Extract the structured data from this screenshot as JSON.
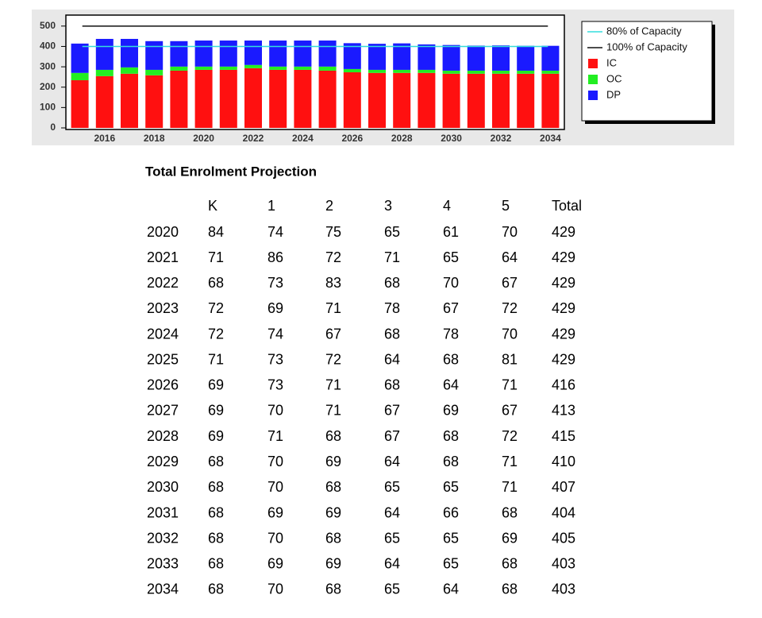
{
  "chart_data": {
    "type": "stacked-bar",
    "categories": [
      null,
      "2016",
      null,
      "2018",
      null,
      "2020",
      null,
      "2022",
      null,
      "2024",
      null,
      "2026",
      null,
      "2028",
      null,
      "2030",
      null,
      "2032",
      null,
      "2034"
    ],
    "series": [
      {
        "name": "IC",
        "color": "#ff1010",
        "values": [
          234,
          254,
          266,
          258,
          281,
          285,
          285,
          293,
          285,
          285,
          281,
          273,
          270,
          270,
          270,
          266,
          266,
          266,
          266,
          266
        ]
      },
      {
        "name": "OC",
        "color": "#22ee22",
        "values": [
          36,
          31,
          31,
          27,
          20,
          16,
          16,
          16,
          16,
          16,
          20,
          16,
          15,
          15,
          15,
          15,
          15,
          15,
          15,
          15
        ]
      },
      {
        "name": "DP",
        "color": "#1a1aff",
        "values": [
          144,
          152,
          140,
          141,
          125,
          128,
          128,
          120,
          128,
          128,
          128,
          127,
          128,
          130,
          125,
          126,
          123,
          124,
          122,
          122
        ]
      }
    ],
    "reference_lines": [
      {
        "name": "80% of Capacity",
        "color": "#33dddd",
        "value": 400
      },
      {
        "name": "100% of Capacity",
        "color": "#111111",
        "value": 500
      }
    ],
    "ylim": [
      0,
      550
    ],
    "yticks": [
      0,
      100,
      200,
      300,
      400,
      500
    ],
    "legend": "right"
  },
  "table": {
    "title": "Total Enrolment Projection",
    "columns": [
      "K",
      "1",
      "2",
      "3",
      "4",
      "5",
      "Total"
    ],
    "rows": [
      {
        "label": "2020",
        "cells": [
          84,
          74,
          75,
          65,
          61,
          70,
          429
        ]
      },
      {
        "label": "2021",
        "cells": [
          71,
          86,
          72,
          71,
          65,
          64,
          429
        ]
      },
      {
        "label": "2022",
        "cells": [
          68,
          73,
          83,
          68,
          70,
          67,
          429
        ]
      },
      {
        "label": "2023",
        "cells": [
          72,
          69,
          71,
          78,
          67,
          72,
          429
        ]
      },
      {
        "label": "2024",
        "cells": [
          72,
          74,
          67,
          68,
          78,
          70,
          429
        ]
      },
      {
        "label": "2025",
        "cells": [
          71,
          73,
          72,
          64,
          68,
          81,
          429
        ]
      },
      {
        "label": "2026",
        "cells": [
          69,
          73,
          71,
          68,
          64,
          71,
          416
        ]
      },
      {
        "label": "2027",
        "cells": [
          69,
          70,
          71,
          67,
          69,
          67,
          413
        ]
      },
      {
        "label": "2028",
        "cells": [
          69,
          71,
          68,
          67,
          68,
          72,
          415
        ]
      },
      {
        "label": "2029",
        "cells": [
          68,
          70,
          69,
          64,
          68,
          71,
          410
        ]
      },
      {
        "label": "2030",
        "cells": [
          68,
          70,
          68,
          65,
          65,
          71,
          407
        ]
      },
      {
        "label": "2031",
        "cells": [
          68,
          69,
          69,
          64,
          66,
          68,
          404
        ]
      },
      {
        "label": "2032",
        "cells": [
          68,
          70,
          68,
          65,
          65,
          69,
          405
        ]
      },
      {
        "label": "2033",
        "cells": [
          68,
          69,
          69,
          64,
          65,
          68,
          403
        ]
      },
      {
        "label": "2034",
        "cells": [
          68,
          70,
          68,
          65,
          64,
          68,
          403
        ]
      }
    ]
  }
}
